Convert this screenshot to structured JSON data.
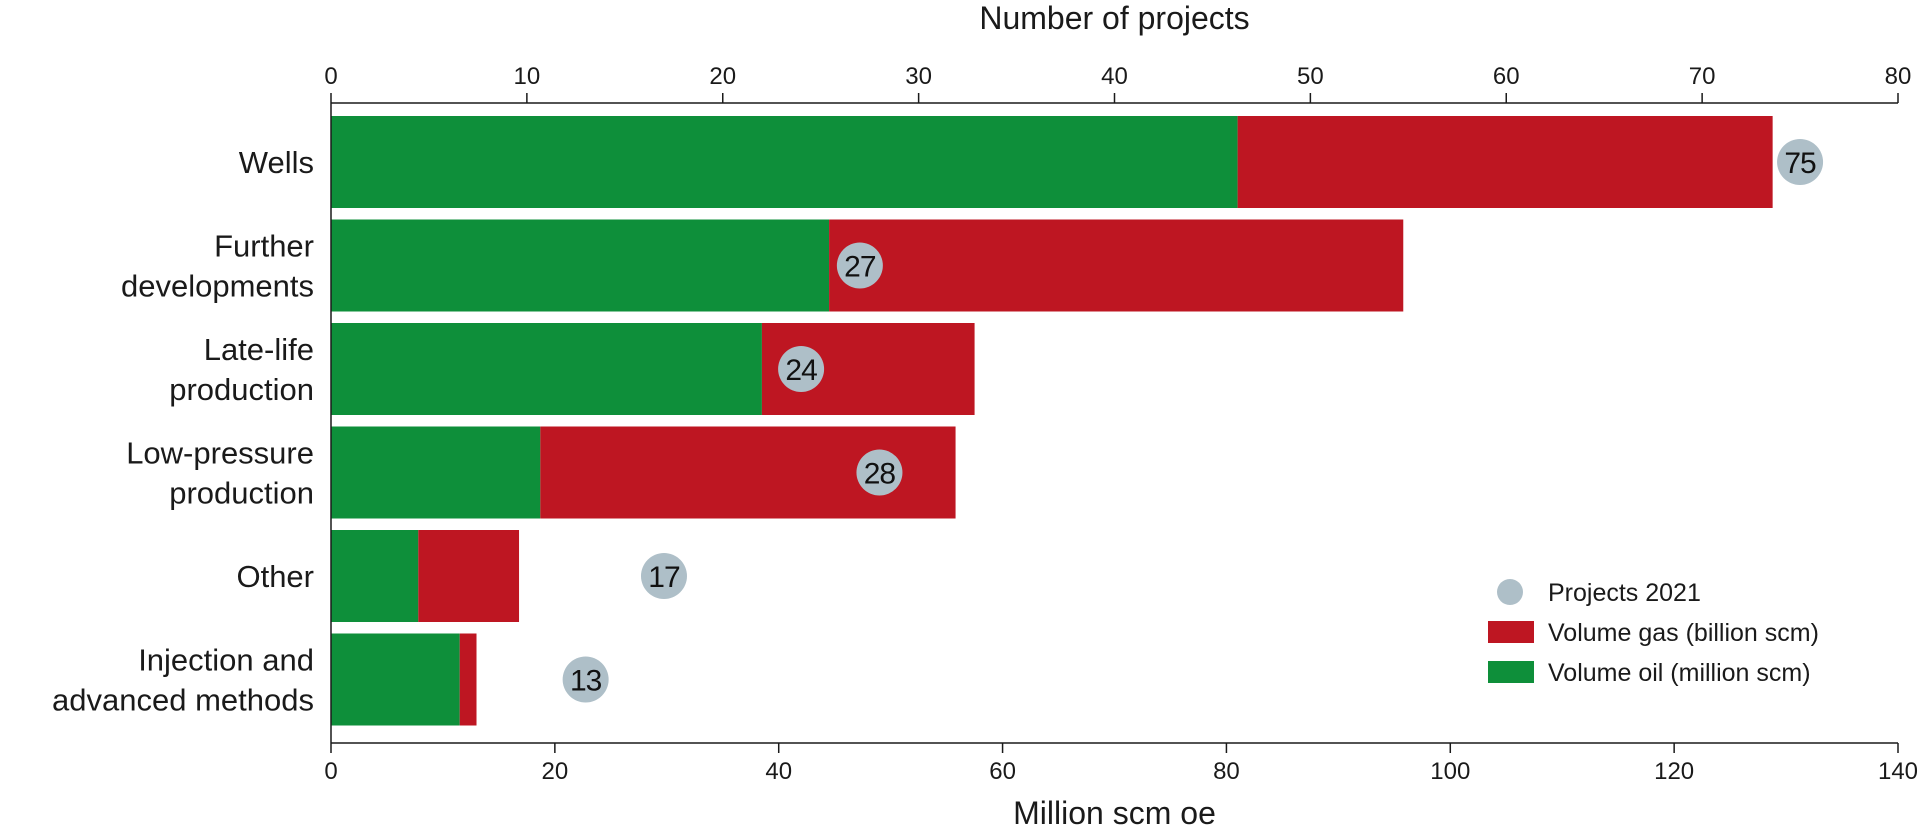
{
  "chart_data": {
    "type": "bar",
    "orientation": "horizontal",
    "stacked": true,
    "categories": [
      [
        "Wells"
      ],
      [
        "Further",
        "developments"
      ],
      [
        "Late-life",
        "production"
      ],
      [
        "Low-pressure",
        "production"
      ],
      [
        "Other"
      ],
      [
        "Injection and",
        "advanced  methods"
      ]
    ],
    "series": [
      {
        "name": "Volume oil (million scm)",
        "color": "#0e8f3a",
        "values": [
          81,
          44.5,
          38.5,
          18.7,
          7.8,
          11.5
        ]
      },
      {
        "name": "Volume gas (billion scm)",
        "color": "#be1622",
        "values": [
          47.8,
          51.3,
          19,
          37.1,
          9,
          1.5
        ]
      }
    ],
    "points": {
      "name": "Projects 2021",
      "color": "#aebfc8",
      "values": [
        75,
        27,
        24,
        28,
        17,
        13
      ],
      "labels": [
        "75",
        "27",
        "24",
        "28",
        "17",
        "13"
      ]
    },
    "xlabel": "Million scm oe",
    "xlim": [
      0,
      140
    ],
    "xticks": [
      0,
      20,
      40,
      60,
      80,
      100,
      120,
      140
    ],
    "x2label": "Number of projects",
    "x2lim": [
      0,
      80
    ],
    "x2ticks": [
      0,
      10,
      20,
      30,
      40,
      50,
      60,
      70,
      80
    ],
    "grid": false,
    "legend_position": "bottom-right",
    "legend_order": [
      "Projects 2021",
      "Volume gas (billion scm)",
      "Volume oil (million scm)"
    ]
  }
}
